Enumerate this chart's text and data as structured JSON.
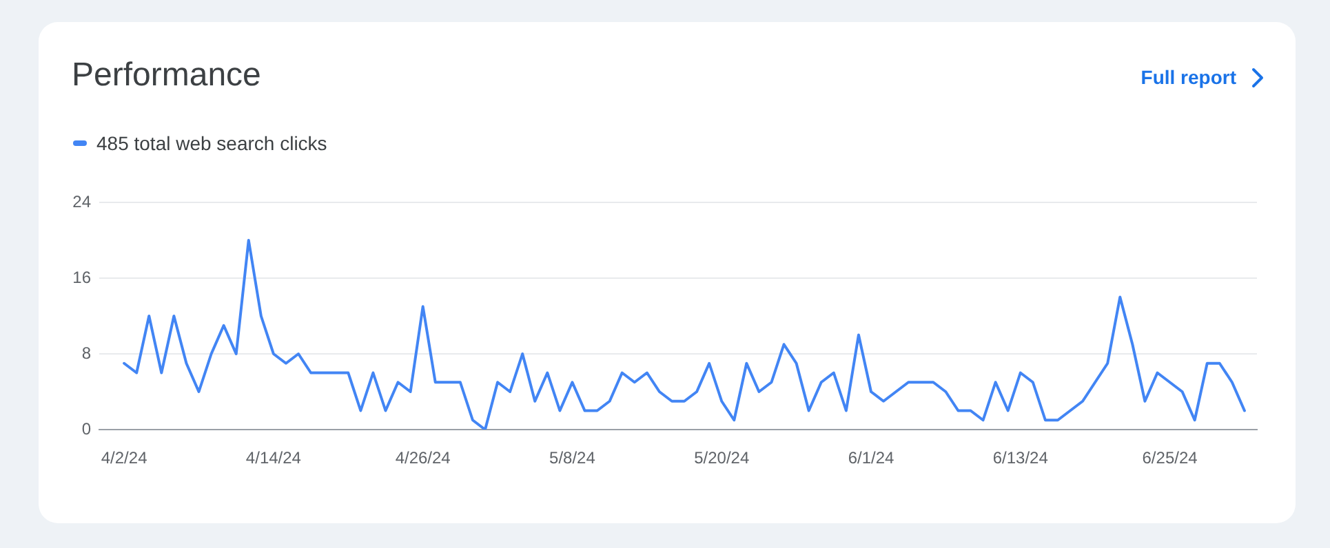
{
  "chart_data": {
    "type": "line",
    "title": "Performance",
    "annotations": [
      "Full report"
    ],
    "x": [
      "--04-02",
      "--04-03",
      "--04-04",
      "--04-05",
      "--04-06",
      "--04-07",
      "--04-08",
      "--04-09",
      "--04-10",
      "--04-11",
      "--04-12",
      "--04-13",
      "--04-14",
      "--04-15",
      "--04-16",
      "--04-17",
      "--04-18",
      "--04-19",
      "--04-20",
      "--04-21",
      "--04-22",
      "--04-23",
      "--04-24",
      "--04-25",
      "--04-26",
      "--04-27",
      "--04-28",
      "--04-29",
      "--04-30",
      "--05-01",
      "--05-02",
      "--05-03",
      "--05-04",
      "--05-05",
      "--05-06",
      "--05-07",
      "--05-08",
      "--05-09",
      "--05-10",
      "--05-11",
      "--05-12",
      "--05-13",
      "--05-14",
      "--05-15",
      "--05-16",
      "--05-17",
      "--05-18",
      "--05-19",
      "--05-20",
      "--05-21",
      "--05-22",
      "--05-23",
      "--05-24",
      "--05-25",
      "--05-26",
      "--05-27",
      "--05-28",
      "--05-29",
      "--05-30",
      "--05-31",
      "--06-01",
      "--06-02",
      "--06-03",
      "--06-04",
      "--06-05",
      "--06-06",
      "--06-07",
      "--06-08",
      "--06-09",
      "--06-10",
      "--06-11",
      "--06-12",
      "--06-13",
      "--06-14",
      "--06-15",
      "--06-16",
      "--06-17",
      "--06-18",
      "--06-19",
      "--06-20",
      "--06-21",
      "--06-22",
      "--06-23",
      "--06-24",
      "--06-25",
      "--06-26",
      "--06-27",
      "--06-28",
      "--06-29",
      "--06-30",
      "--07-01"
    ],
    "series": [
      {
        "name": "485 total web search clicks",
        "color": "#4285f4",
        "values": [
          7,
          6,
          12,
          6,
          12,
          7,
          4,
          8,
          11,
          8,
          20,
          12,
          8,
          7,
          8,
          6,
          6,
          6,
          6,
          2,
          6,
          2,
          5,
          4,
          13,
          5,
          5,
          5,
          1,
          0,
          5,
          4,
          8,
          3,
          6,
          2,
          5,
          2,
          2,
          3,
          6,
          5,
          6,
          4,
          3,
          3,
          4,
          7,
          3,
          1,
          7,
          4,
          5,
          9,
          7,
          2,
          5,
          6,
          2,
          10,
          4,
          3,
          4,
          5,
          5,
          5,
          4,
          2,
          2,
          1,
          5,
          2,
          6,
          5,
          1,
          1,
          2,
          3,
          5,
          7,
          14,
          9,
          3,
          6,
          5,
          4,
          1,
          7,
          7,
          5,
          2
        ]
      }
    ],
    "xlim": [
      "--03-31",
      "--07-02"
    ],
    "xticks": [
      {
        "value": "--04-02",
        "label": "4/2/24"
      },
      {
        "value": "--04-14",
        "label": "4/14/24"
      },
      {
        "value": "--04-26",
        "label": "4/26/24"
      },
      {
        "value": "--05-08",
        "label": "5/8/24"
      },
      {
        "value": "--05-20",
        "label": "5/20/24"
      },
      {
        "value": "--06-01",
        "label": "6/1/24"
      },
      {
        "value": "--06-13",
        "label": "6/13/24"
      },
      {
        "value": "--06-25",
        "label": "6/25/24"
      }
    ],
    "ylim": [
      0,
      24
    ],
    "yticks": [
      0,
      8,
      16,
      24
    ],
    "grid": "y",
    "legend": "top left",
    "marker": "none",
    "line_style": "solid"
  }
}
